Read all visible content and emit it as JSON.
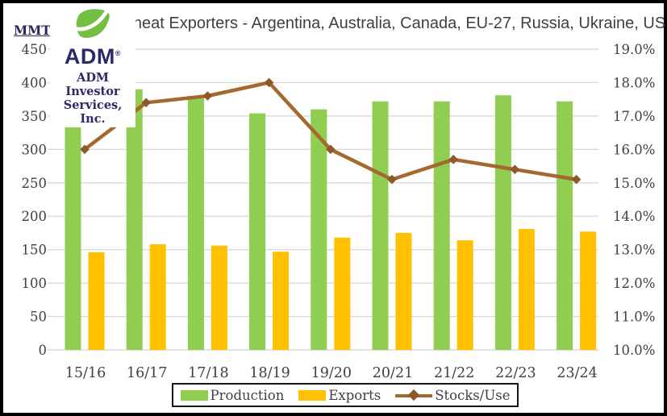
{
  "header": {
    "units_label": "MMT's",
    "title": "Wheat Exporters - Argentina, Australia, Canada, EU-27, Russia, Ukraine, US",
    "logo": {
      "brand": "ADM",
      "registered_mark": "®",
      "subtitle_line1": "ADM Investor",
      "subtitle_line2": "Services, Inc."
    }
  },
  "chart_data": {
    "type": "bar",
    "subtype": "combo-bar-line",
    "title": "Wheat Exporters - Argentina, Australia, Canada, EU-27, Russia, Ukraine, US",
    "categories": [
      "15/16",
      "16/17",
      "17/18",
      "18/19",
      "19/20",
      "20/21",
      "21/22",
      "22/23",
      "23/24"
    ],
    "series": [
      {
        "name": "Production",
        "type": "bar",
        "axis": "left",
        "unit": "MMT",
        "color": "#8FCE50",
        "values": [
          365,
          390,
          380,
          354,
          360,
          372,
          372,
          381,
          372
        ]
      },
      {
        "name": "Exports",
        "type": "bar",
        "axis": "left",
        "unit": "MMT",
        "color": "#FFC000",
        "values": [
          146,
          158,
          156,
          147,
          168,
          175,
          164,
          181,
          177
        ]
      },
      {
        "name": "Stocks/Use",
        "type": "line",
        "axis": "right",
        "unit": "%",
        "marker": "diamond",
        "color": "#A3692E",
        "marker_color": "#8A5A28",
        "values": [
          16.0,
          17.4,
          17.6,
          18.0,
          16.0,
          15.1,
          15.7,
          15.4,
          15.1
        ]
      }
    ],
    "left_axis": {
      "label": "MMT's",
      "min": 0,
      "max": 450,
      "tick_step": 50,
      "ticks": [
        "0",
        "50",
        "100",
        "150",
        "200",
        "250",
        "300",
        "350",
        "400",
        "450"
      ]
    },
    "right_axis": {
      "min": 10.0,
      "max": 19.0,
      "tick_step": 1.0,
      "ticks": [
        "10.0%",
        "11.0%",
        "12.0%",
        "13.0%",
        "14.0%",
        "15.0%",
        "16.0%",
        "17.0%",
        "18.0%",
        "19.0%"
      ]
    },
    "legend": {
      "position": "bottom",
      "entries": [
        "Production",
        "Exports",
        "Stocks/Use"
      ]
    },
    "grid": true,
    "gridline_color": "#D9D9D9"
  },
  "colors": {
    "brand_navy": "#2c2a66",
    "brand_green": "#72BF44",
    "title_text": "#3f3f3f",
    "tick_text": "#404040",
    "frame_border": "#000000"
  }
}
